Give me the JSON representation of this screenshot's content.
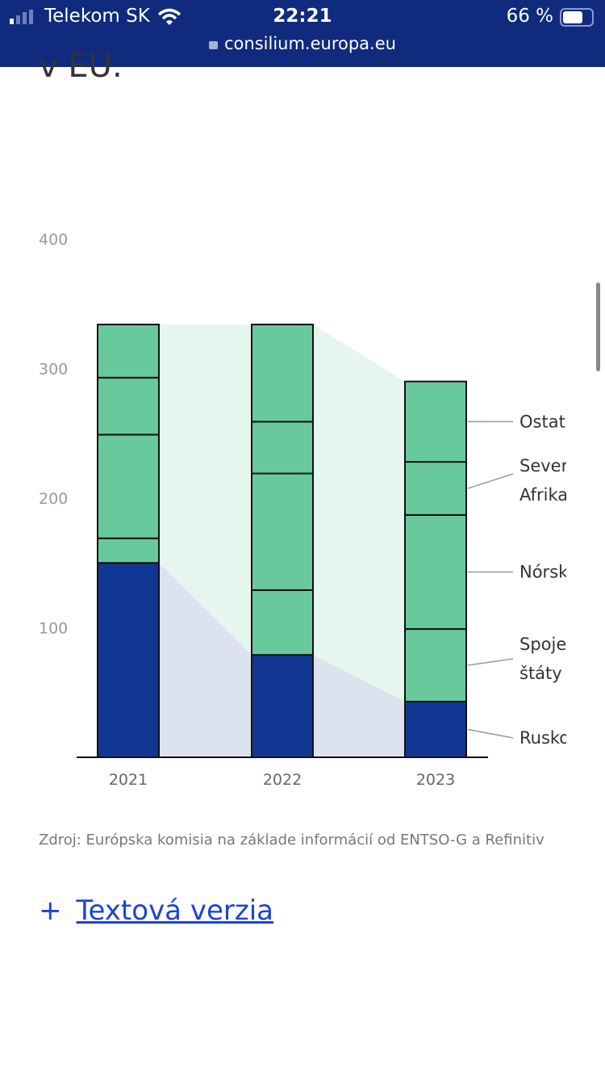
{
  "status_bar": {
    "carrier": "Telekom SK",
    "time": "22:21",
    "battery": "66 %",
    "battery_level": 0.66,
    "url": "consilium.europa.eu"
  },
  "page": {
    "heading_fragment": "v EÚ.",
    "source": "Zdroj: Európska komisia na základe informácií od ENTSO-G a Refinitiv",
    "text_version": "Textová verzia",
    "plus_icon": "+"
  },
  "colors": {
    "russia": "#123792",
    "other": "#68c99c",
    "fill_green": "#e6f6ee",
    "fill_blue": "#dde2ef",
    "header": "#102a7e",
    "link": "#1a44d8"
  },
  "chart_data": {
    "type": "bar",
    "stacked": true,
    "categories": [
      "2021",
      "2022",
      "2023"
    ],
    "ylim": [
      0,
      400
    ],
    "yticks": [
      100,
      200,
      300,
      400
    ],
    "series": [
      {
        "name": "Rusko",
        "values": [
          150,
          79,
          43
        ]
      },
      {
        "name": "Spojené štáty",
        "values": [
          19,
          50,
          56
        ]
      },
      {
        "name": "Nórsko",
        "values": [
          80,
          90,
          88
        ]
      },
      {
        "name": "Severná Afrika",
        "values": [
          44,
          40,
          41
        ]
      },
      {
        "name": "Ostatné",
        "values": [
          41,
          75,
          62
        ]
      }
    ],
    "legend": "right"
  }
}
